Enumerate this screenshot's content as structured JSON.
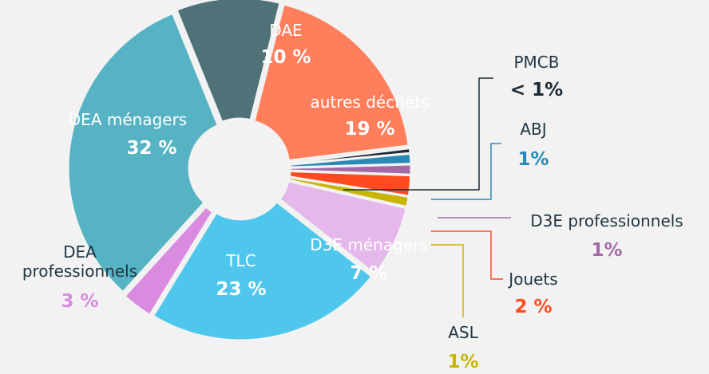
{
  "chart_data": {
    "type": "donut",
    "categories": [
      "DAE",
      "autres déchets",
      "PMCB",
      "ABJ",
      "D3E professionnels",
      "Jouets",
      "ASL",
      "D3E ménagers",
      "TLC",
      "DEA professionnels",
      "DEA ménagers"
    ],
    "values": [
      10,
      19,
      0.5,
      1,
      1,
      2,
      1,
      7,
      23,
      3,
      32
    ],
    "value_labels": [
      "10 %",
      "19 %",
      "< 1%",
      "1%",
      "1%",
      "2 %",
      "1%",
      "7 %",
      "23 %",
      "3 %",
      "32 %"
    ],
    "colors": [
      "#4f7178",
      "#ff7f5c",
      "#1b2a33",
      "#2a8ab5",
      "#a569a8",
      "#ff4b1f",
      "#c9b400",
      "#e4b8ea",
      "#4fc7ec",
      "#d98be0",
      "#56b3c4"
    ]
  }
}
